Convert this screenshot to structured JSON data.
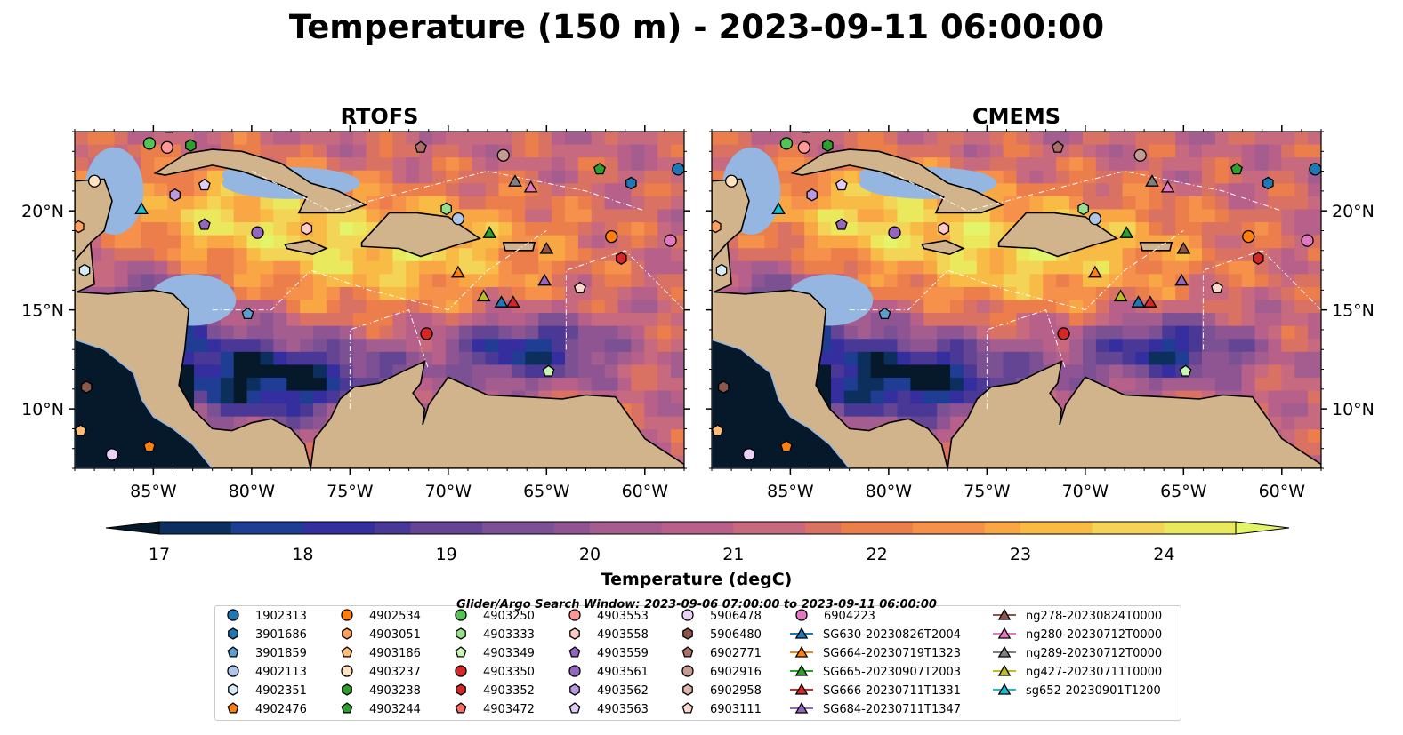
{
  "chart_data": {
    "type": "heatmap",
    "title": "Temperature (150 m) - 2023-09-11 06:00:00",
    "panels": [
      {
        "title": "RTOFS"
      },
      {
        "title": "CMEMS"
      }
    ],
    "lon_range": [
      -89,
      -58
    ],
    "lat_range": [
      7,
      24
    ],
    "x_ticks": [
      -85,
      -80,
      -75,
      -70,
      -65,
      -60
    ],
    "x_tick_labels": [
      "85°W",
      "80°W",
      "75°W",
      "70°W",
      "65°W",
      "60°W"
    ],
    "y_ticks": [
      10,
      15,
      20
    ],
    "y_tick_labels": [
      "10°N",
      "15°N",
      "20°N"
    ],
    "colorbar": {
      "label": "Temperature (degC)",
      "min": 16.75,
      "max": 24.5,
      "step": 0.25,
      "ticks": [
        17,
        18,
        19,
        20,
        21,
        22,
        23,
        24
      ],
      "extend": "both",
      "colors": [
        "#06192b",
        "#0c2f5d",
        "#1f3d93",
        "#342e9f",
        "#4a3896",
        "#634593",
        "#7b5194",
        "#8f5593",
        "#a45d8f",
        "#b6608a",
        "#c76a7f",
        "#d97263",
        "#eb7e4b",
        "#f5914b",
        "#f9a745",
        "#f8bb45",
        "#f3d456",
        "#eae85d",
        "#e4f46a"
      ]
    },
    "search_window": "Glider/Argo Search Window: 2023-09-06 07:00:00 to 2023-09-11 06:00:00",
    "legend": [
      {
        "name": "1902313",
        "marker": "circle",
        "color": "#1f77b4",
        "lon": -58.3,
        "lat": 22.1
      },
      {
        "name": "3901686",
        "marker": "hexagon",
        "color": "#1f77b4",
        "lon": -60.7,
        "lat": 21.4
      },
      {
        "name": "3901859",
        "marker": "pentagon",
        "color": "#5d9ccc",
        "lon": -80.2,
        "lat": 14.8
      },
      {
        "name": "4902113",
        "marker": "circle",
        "color": "#aec7e8",
        "lon": -69.5,
        "lat": 19.6
      },
      {
        "name": "4902351",
        "marker": "hexagon",
        "color": "#d6ecf8",
        "lon": -88.5,
        "lat": 17.0
      },
      {
        "name": "4902476",
        "marker": "pentagon",
        "color": "#ff7f0e",
        "lon": -85.2,
        "lat": 8.1
      },
      {
        "name": "4902534",
        "marker": "circle",
        "color": "#ff7f0e",
        "lon": -61.7,
        "lat": 18.7
      },
      {
        "name": "4903051",
        "marker": "hexagon",
        "color": "#ffa15a",
        "lon": -88.8,
        "lat": 19.2
      },
      {
        "name": "4903186",
        "marker": "pentagon",
        "color": "#ffbb78",
        "lon": -88.7,
        "lat": 8.9
      },
      {
        "name": "4903237",
        "marker": "circle",
        "color": "#ffe3c2",
        "lon": -88.0,
        "lat": 21.5
      },
      {
        "name": "4903238",
        "marker": "hexagon",
        "color": "#2ca02c",
        "lon": -83.1,
        "lat": 23.3
      },
      {
        "name": "4903244",
        "marker": "pentagon",
        "color": "#2ca02c",
        "lon": -62.3,
        "lat": 22.1
      },
      {
        "name": "4903250",
        "marker": "circle",
        "color": "#55c255",
        "lon": -85.2,
        "lat": 23.4
      },
      {
        "name": "4903333",
        "marker": "hexagon",
        "color": "#98df8a",
        "lon": -70.1,
        "lat": 20.1
      },
      {
        "name": "4903349",
        "marker": "pentagon",
        "color": "#c8f5b4",
        "lon": -64.9,
        "lat": 11.9
      },
      {
        "name": "4903350",
        "marker": "circle",
        "color": "#d62728",
        "lon": -71.1,
        "lat": 13.8
      },
      {
        "name": "4903352",
        "marker": "hexagon",
        "color": "#d62728",
        "lon": -61.2,
        "lat": 17.6
      },
      {
        "name": "4903472",
        "marker": "pentagon",
        "color": "#ff6b6b",
        "lon": -84.2,
        "lat": 24.2
      },
      {
        "name": "4903553",
        "marker": "circle",
        "color": "#ff9896",
        "lon": -84.3,
        "lat": 23.2
      },
      {
        "name": "4903558",
        "marker": "hexagon",
        "color": "#ffc9c8",
        "lon": -77.2,
        "lat": 19.1
      },
      {
        "name": "4903559",
        "marker": "pentagon",
        "color": "#9467bd",
        "lon": -82.4,
        "lat": 19.3
      },
      {
        "name": "4903561",
        "marker": "circle",
        "color": "#9467bd",
        "lon": -79.7,
        "lat": 18.9
      },
      {
        "name": "4903562",
        "marker": "hexagon",
        "color": "#b99ae0",
        "lon": -83.9,
        "lat": 20.8
      },
      {
        "name": "4903563",
        "marker": "pentagon",
        "color": "#e0cdf5",
        "lon": -82.4,
        "lat": 21.3
      },
      {
        "name": "5906478",
        "marker": "circle",
        "color": "#e8d3f7",
        "lon": -87.1,
        "lat": 7.7
      },
      {
        "name": "5906480",
        "marker": "hexagon",
        "color": "#8c564b",
        "lon": -88.4,
        "lat": 11.1
      },
      {
        "name": "6902771",
        "marker": "pentagon",
        "color": "#a9706a",
        "lon": -71.4,
        "lat": 23.2
      },
      {
        "name": "6902916",
        "marker": "circle",
        "color": "#c49c94",
        "lon": -67.2,
        "lat": 22.8
      },
      {
        "name": "6902958",
        "marker": "hexagon",
        "color": "#e0b7ac",
        "lon": -89.5,
        "lat": 15.5
      },
      {
        "name": "6903111",
        "marker": "pentagon",
        "color": "#fcd9cf",
        "lon": -63.3,
        "lat": 16.1
      },
      {
        "name": "6904223",
        "marker": "circle",
        "color": "#e377c2",
        "lon": -58.7,
        "lat": 18.5
      },
      {
        "name": "SG630-20230826T2004",
        "marker": "triangle",
        "color": "#1f77b4",
        "lon": -67.3,
        "lat": 15.4
      },
      {
        "name": "SG664-20230719T1323",
        "marker": "triangle",
        "color": "#ff7f0e",
        "lon": -69.5,
        "lat": 16.9
      },
      {
        "name": "SG665-20230907T2003",
        "marker": "triangle",
        "color": "#2ca02c",
        "lon": -67.9,
        "lat": 18.9
      },
      {
        "name": "SG666-20230711T1331",
        "marker": "triangle",
        "color": "#d62728",
        "lon": -66.7,
        "lat": 15.4
      },
      {
        "name": "SG684-20230711T1347",
        "marker": "triangle",
        "color": "#9467bd",
        "lon": -65.1,
        "lat": 16.5
      },
      {
        "name": "ng278-20230824T0000",
        "marker": "triangle",
        "color": "#8c564b",
        "lon": -65.0,
        "lat": 18.1
      },
      {
        "name": "ng280-20230712T0000",
        "marker": "triangle",
        "color": "#e377c2",
        "lon": -65.8,
        "lat": 21.2
      },
      {
        "name": "ng289-20230712T0000",
        "marker": "triangle",
        "color": "#7f7f7f",
        "lon": -66.6,
        "lat": 21.5
      },
      {
        "name": "ng427-20230711T0000",
        "marker": "triangle",
        "color": "#bcbd22",
        "lon": -68.2,
        "lat": 15.7
      },
      {
        "name": "sg652-20230901T1200",
        "marker": "triangle",
        "color": "#17becf",
        "lon": -85.6,
        "lat": 20.1
      }
    ]
  }
}
